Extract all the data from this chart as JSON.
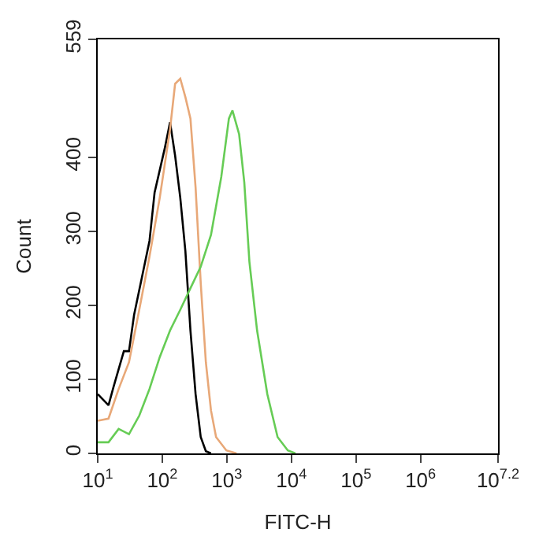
{
  "chart_data": {
    "type": "line",
    "xlabel": "FITC-H",
    "ylabel": "Count",
    "log": "x",
    "marker": "none",
    "line_style": "solid",
    "xlim": [
      10,
      15848932
    ],
    "ylim": [
      0,
      559
    ],
    "xticks": [
      {
        "value": 10,
        "label": "10$^{1}$"
      },
      {
        "value": 100,
        "label": "10$^{2}$"
      },
      {
        "value": 1000,
        "label": "10$^{3}$"
      },
      {
        "value": 10000,
        "label": "10$^{4}$"
      },
      {
        "value": 100000,
        "label": "10$^{5}$"
      },
      {
        "value": 1000000,
        "label": "10$^{6}$"
      },
      {
        "value": 15848932,
        "label": "10$^{7.2}$"
      }
    ],
    "yticks": [
      0,
      100,
      200,
      300,
      400,
      559
    ],
    "series": [
      {
        "color": "#000000",
        "x": [
          10,
          14.7,
          17.6,
          25.4,
          30.5,
          36.6,
          48.2,
          63.4,
          76.0,
          110,
          132,
          158,
          190,
          228,
          273,
          328,
          394,
          473,
          568
        ],
        "values": [
          80,
          65,
          90,
          138,
          138,
          187,
          237,
          287,
          352,
          413,
          447,
          402,
          345,
          273,
          166,
          80,
          22,
          3,
          0
        ]
      },
      {
        "color": "#e8a878",
        "x": [
          10,
          14.7,
          21.1,
          30.5,
          44.0,
          63.4,
          91.3,
          132,
          158,
          190,
          228,
          273,
          328,
          394,
          473,
          568,
          681,
          982,
          1416
        ],
        "values": [
          44,
          47,
          87,
          123,
          194,
          266,
          345,
          438,
          499,
          506,
          481,
          452,
          359,
          230,
          123,
          58,
          22,
          4,
          0
        ]
      },
      {
        "color": "#66cc55",
        "x": [
          10,
          14.7,
          21.1,
          30.5,
          44.0,
          63.4,
          91.3,
          132,
          190,
          273,
          394,
          568,
          819,
          1076,
          1222,
          1549,
          1862,
          2235,
          2940,
          4236,
          6109,
          8790,
          11560
        ],
        "values": [
          15,
          15,
          33,
          26,
          51,
          87,
          130,
          166,
          194,
          223,
          252,
          295,
          373,
          452,
          463,
          431,
          366,
          259,
          166,
          80,
          22,
          4,
          0
        ]
      }
    ]
  }
}
